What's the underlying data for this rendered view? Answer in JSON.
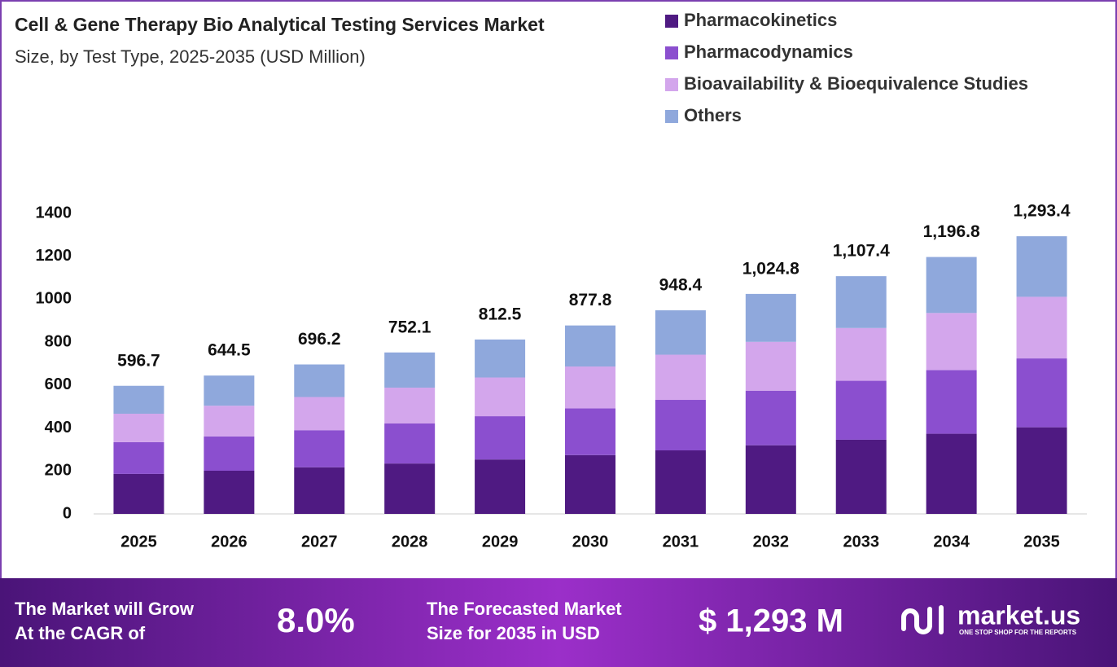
{
  "chart_data": {
    "type": "stacked_bar",
    "title": "Cell & Gene Therapy Bio Analytical Testing Services Market",
    "subtitle": "Size, by Test Type, 2025-2035 (USD Million)",
    "categories": [
      "2025",
      "2026",
      "2027",
      "2028",
      "2029",
      "2030",
      "2031",
      "2032",
      "2033",
      "2034",
      "2035"
    ],
    "series": [
      {
        "name": "Pharmacokinetics",
        "color": "#4f1a82",
        "values": [
          186.2,
          201.1,
          217.2,
          234.7,
          253.5,
          273.9,
          295.9,
          319.7,
          345.5,
          373.4,
          403.5
        ]
      },
      {
        "name": "Pharmacodynamics",
        "color": "#8b4fcf",
        "values": [
          148.0,
          159.8,
          172.7,
          186.5,
          201.5,
          217.7,
          235.2,
          254.2,
          274.6,
          296.8,
          320.8
        ]
      },
      {
        "name": "Bioavailability & Bioequivalence Studies",
        "color": "#d3a6ec",
        "values": [
          132.5,
          143.1,
          154.6,
          167.0,
          180.4,
          194.9,
          210.5,
          227.5,
          245.8,
          265.7,
          287.1
        ]
      },
      {
        "name": "Others",
        "color": "#8fa8dc",
        "values": [
          130.0,
          140.5,
          151.7,
          163.9,
          177.1,
          191.3,
          206.8,
          223.4,
          241.5,
          260.9,
          282.0
        ]
      }
    ],
    "totals": {
      "values": [
        596.7,
        644.5,
        696.2,
        752.1,
        812.5,
        877.8,
        948.4,
        1024.8,
        1107.4,
        1196.8,
        1293.4
      ],
      "value_labels": [
        "596.7",
        "644.5",
        "696.2",
        "752.1",
        "812.5",
        "877.8",
        "948.4",
        "1,024.8",
        "1,107.4",
        "1,196.8",
        "1,293.4"
      ]
    },
    "ylim": [
      0,
      1400
    ],
    "yticks": [
      0,
      200,
      400,
      600,
      800,
      1000,
      1200,
      1400
    ],
    "grid": false,
    "legend": "top-right"
  },
  "footer": {
    "cagr_text": [
      "The Market will Grow",
      "At the CAGR of"
    ],
    "cagr_value": "8.0%",
    "forecast_text": [
      "The Forecasted Market",
      "Size for 2035 in USD"
    ],
    "forecast_value": "$ 1,293 M",
    "brand": "market.us",
    "tagline": "ONE STOP SHOP FOR THE REPORTS"
  }
}
